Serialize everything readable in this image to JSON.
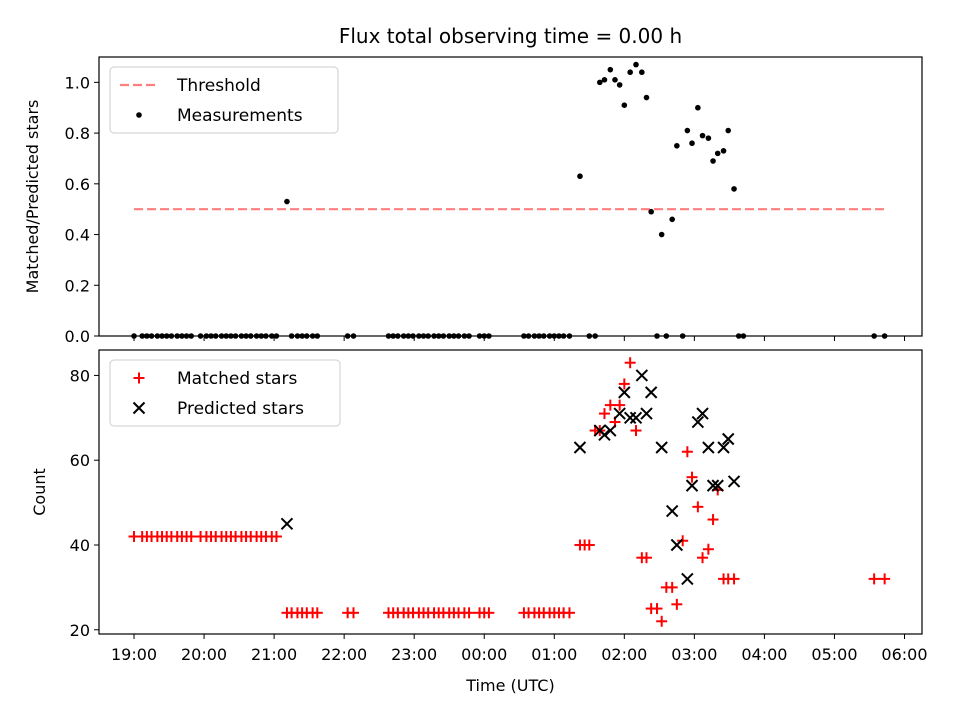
{
  "chart_data": [
    {
      "type": "scatter",
      "title": "Flux total observing time = 0.00 h",
      "xlabel": "",
      "ylabel": "Matched/Predicted stars",
      "xlim": [
        "18:30",
        "06:15"
      ],
      "ylim": [
        0,
        1.1
      ],
      "yticks": [
        0.0,
        0.2,
        0.4,
        0.6,
        0.8,
        1.0
      ],
      "ytick_labels": [
        "0.0",
        "0.2",
        "0.4",
        "0.6",
        "0.8",
        "1.0"
      ],
      "legend": {
        "placement": "upper-left",
        "entries": [
          "Threshold",
          "Measurements"
        ]
      },
      "threshold": {
        "name": "Threshold",
        "value": 0.5,
        "x_start": "19:00",
        "x_end": "05:43",
        "color": "#ff7f7f",
        "style": "dashed"
      },
      "series": [
        {
          "name": "Measurements",
          "marker": "dot",
          "color": "#000000",
          "points": [
            [
              "19:00",
              0
            ],
            [
              "19:07",
              0
            ],
            [
              "19:11",
              0
            ],
            [
              "19:15",
              0
            ],
            [
              "19:20",
              0
            ],
            [
              "19:24",
              0
            ],
            [
              "19:28",
              0
            ],
            [
              "19:32",
              0
            ],
            [
              "19:37",
              0
            ],
            [
              "19:41",
              0
            ],
            [
              "19:45",
              0
            ],
            [
              "19:49",
              0
            ],
            [
              "19:57",
              0
            ],
            [
              "20:02",
              0
            ],
            [
              "20:06",
              0
            ],
            [
              "20:10",
              0
            ],
            [
              "20:15",
              0
            ],
            [
              "20:19",
              0
            ],
            [
              "20:23",
              0
            ],
            [
              "20:27",
              0
            ],
            [
              "20:32",
              0
            ],
            [
              "20:36",
              0
            ],
            [
              "20:40",
              0
            ],
            [
              "20:45",
              0
            ],
            [
              "20:49",
              0
            ],
            [
              "20:53",
              0
            ],
            [
              "20:58",
              0
            ],
            [
              "21:02",
              0
            ],
            [
              "21:11",
              0.53
            ],
            [
              "21:15",
              0
            ],
            [
              "21:20",
              0
            ],
            [
              "21:24",
              0
            ],
            [
              "21:28",
              0
            ],
            [
              "21:33",
              0
            ],
            [
              "21:37",
              0
            ],
            [
              "22:03",
              0
            ],
            [
              "22:08",
              0
            ],
            [
              "22:38",
              0
            ],
            [
              "22:42",
              0
            ],
            [
              "22:46",
              0
            ],
            [
              "22:51",
              0
            ],
            [
              "22:55",
              0
            ],
            [
              "22:59",
              0
            ],
            [
              "23:04",
              0
            ],
            [
              "23:08",
              0
            ],
            [
              "23:12",
              0
            ],
            [
              "23:17",
              0
            ],
            [
              "23:21",
              0
            ],
            [
              "23:25",
              0
            ],
            [
              "23:30",
              0
            ],
            [
              "23:34",
              0
            ],
            [
              "23:38",
              0
            ],
            [
              "23:43",
              0
            ],
            [
              "23:47",
              0
            ],
            [
              "23:56",
              0
            ],
            [
              "00:00",
              0
            ],
            [
              "00:04",
              0
            ],
            [
              "00:34",
              0
            ],
            [
              "00:38",
              0
            ],
            [
              "00:43",
              0
            ],
            [
              "00:47",
              0
            ],
            [
              "00:51",
              0
            ],
            [
              "00:56",
              0
            ],
            [
              "01:00",
              0
            ],
            [
              "01:04",
              0
            ],
            [
              "01:08",
              0
            ],
            [
              "01:13",
              0
            ],
            [
              "01:22",
              0.63
            ],
            [
              "01:30",
              0
            ],
            [
              "01:35",
              0
            ],
            [
              "01:39",
              1.0
            ],
            [
              "01:43",
              1.01
            ],
            [
              "01:48",
              1.05
            ],
            [
              "01:52",
              1.01
            ],
            [
              "01:56",
              0.99
            ],
            [
              "02:00",
              0.91
            ],
            [
              "02:05",
              1.04
            ],
            [
              "02:10",
              1.07
            ],
            [
              "02:15",
              1.04
            ],
            [
              "02:19",
              0.94
            ],
            [
              "02:23",
              0.49
            ],
            [
              "02:28",
              0
            ],
            [
              "02:32",
              0.4
            ],
            [
              "02:36",
              0
            ],
            [
              "02:41",
              0.46
            ],
            [
              "02:45",
              0.75
            ],
            [
              "02:50",
              0
            ],
            [
              "02:54",
              0.81
            ],
            [
              "02:58",
              0.76
            ],
            [
              "03:03",
              0.9
            ],
            [
              "03:07",
              0.79
            ],
            [
              "03:12",
              0.78
            ],
            [
              "03:16",
              0.69
            ],
            [
              "03:20",
              0.72
            ],
            [
              "03:25",
              0.73
            ],
            [
              "03:29",
              0.81
            ],
            [
              "03:34",
              0.58
            ],
            [
              "03:38",
              0
            ],
            [
              "03:42",
              0
            ],
            [
              "05:34",
              0
            ],
            [
              "05:43",
              0
            ]
          ]
        }
      ]
    },
    {
      "type": "scatter",
      "title": "",
      "xlabel": "Time (UTC)",
      "ylabel": "Count",
      "xlim": [
        "18:30",
        "06:15"
      ],
      "ylim": [
        19,
        86
      ],
      "yticks": [
        20,
        40,
        60,
        80
      ],
      "ytick_labels": [
        "20",
        "40",
        "60",
        "80"
      ],
      "xticks": [
        "19:00",
        "20:00",
        "21:00",
        "22:00",
        "23:00",
        "00:00",
        "01:00",
        "02:00",
        "03:00",
        "04:00",
        "05:00",
        "06:00"
      ],
      "legend": {
        "placement": "upper-left",
        "entries": [
          "Matched stars",
          "Predicted stars"
        ]
      },
      "series": [
        {
          "name": "Matched stars",
          "marker": "plus",
          "color": "#ff0000",
          "points": [
            [
              "19:00",
              42
            ],
            [
              "19:07",
              42
            ],
            [
              "19:11",
              42
            ],
            [
              "19:15",
              42
            ],
            [
              "19:20",
              42
            ],
            [
              "19:24",
              42
            ],
            [
              "19:28",
              42
            ],
            [
              "19:32",
              42
            ],
            [
              "19:37",
              42
            ],
            [
              "19:41",
              42
            ],
            [
              "19:45",
              42
            ],
            [
              "19:49",
              42
            ],
            [
              "19:57",
              42
            ],
            [
              "20:02",
              42
            ],
            [
              "20:06",
              42
            ],
            [
              "20:10",
              42
            ],
            [
              "20:15",
              42
            ],
            [
              "20:19",
              42
            ],
            [
              "20:23",
              42
            ],
            [
              "20:27",
              42
            ],
            [
              "20:32",
              42
            ],
            [
              "20:36",
              42
            ],
            [
              "20:40",
              42
            ],
            [
              "20:45",
              42
            ],
            [
              "20:49",
              42
            ],
            [
              "20:53",
              42
            ],
            [
              "20:58",
              42
            ],
            [
              "21:02",
              42
            ],
            [
              "21:11",
              24
            ],
            [
              "21:15",
              24
            ],
            [
              "21:20",
              24
            ],
            [
              "21:24",
              24
            ],
            [
              "21:28",
              24
            ],
            [
              "21:33",
              24
            ],
            [
              "21:37",
              24
            ],
            [
              "22:03",
              24
            ],
            [
              "22:08",
              24
            ],
            [
              "22:38",
              24
            ],
            [
              "22:42",
              24
            ],
            [
              "22:46",
              24
            ],
            [
              "22:51",
              24
            ],
            [
              "22:55",
              24
            ],
            [
              "22:59",
              24
            ],
            [
              "23:04",
              24
            ],
            [
              "23:08",
              24
            ],
            [
              "23:12",
              24
            ],
            [
              "23:17",
              24
            ],
            [
              "23:21",
              24
            ],
            [
              "23:25",
              24
            ],
            [
              "23:30",
              24
            ],
            [
              "23:34",
              24
            ],
            [
              "23:38",
              24
            ],
            [
              "23:43",
              24
            ],
            [
              "23:47",
              24
            ],
            [
              "23:56",
              24
            ],
            [
              "00:00",
              24
            ],
            [
              "00:04",
              24
            ],
            [
              "00:34",
              24
            ],
            [
              "00:38",
              24
            ],
            [
              "00:43",
              24
            ],
            [
              "00:47",
              24
            ],
            [
              "00:51",
              24
            ],
            [
              "00:56",
              24
            ],
            [
              "01:00",
              24
            ],
            [
              "01:04",
              24
            ],
            [
              "01:08",
              24
            ],
            [
              "01:13",
              24
            ],
            [
              "01:22",
              40
            ],
            [
              "01:26",
              40
            ],
            [
              "01:30",
              40
            ],
            [
              "01:35",
              67
            ],
            [
              "01:39",
              67
            ],
            [
              "01:43",
              71
            ],
            [
              "01:48",
              73
            ],
            [
              "01:52",
              69
            ],
            [
              "01:56",
              73
            ],
            [
              "02:00",
              78
            ],
            [
              "02:05",
              83
            ],
            [
              "02:10",
              67
            ],
            [
              "02:15",
              37
            ],
            [
              "02:19",
              37
            ],
            [
              "02:23",
              25
            ],
            [
              "02:28",
              25
            ],
            [
              "02:32",
              22
            ],
            [
              "02:36",
              30
            ],
            [
              "02:41",
              30
            ],
            [
              "02:45",
              26
            ],
            [
              "02:50",
              41
            ],
            [
              "02:54",
              62
            ],
            [
              "02:58",
              56
            ],
            [
              "03:03",
              49
            ],
            [
              "03:07",
              37
            ],
            [
              "03:12",
              39
            ],
            [
              "03:16",
              46
            ],
            [
              "03:20",
              53
            ],
            [
              "03:25",
              32
            ],
            [
              "03:29",
              32
            ],
            [
              "03:34",
              32
            ],
            [
              "05:34",
              32
            ],
            [
              "05:43",
              32
            ]
          ]
        },
        {
          "name": "Predicted stars",
          "marker": "x",
          "color": "#000000",
          "points": [
            [
              "21:11",
              45
            ],
            [
              "01:22",
              63
            ],
            [
              "01:39",
              67
            ],
            [
              "01:43",
              66
            ],
            [
              "01:48",
              67
            ],
            [
              "01:56",
              71
            ],
            [
              "02:00",
              76
            ],
            [
              "02:05",
              70
            ],
            [
              "02:10",
              70
            ],
            [
              "02:15",
              80
            ],
            [
              "02:19",
              71
            ],
            [
              "02:23",
              76
            ],
            [
              "02:32",
              63
            ],
            [
              "02:41",
              48
            ],
            [
              "02:45",
              40
            ],
            [
              "02:54",
              32
            ],
            [
              "02:58",
              54
            ],
            [
              "03:03",
              69
            ],
            [
              "03:07",
              71
            ],
            [
              "03:12",
              63
            ],
            [
              "03:16",
              54
            ],
            [
              "03:20",
              54
            ],
            [
              "03:25",
              63
            ],
            [
              "03:29",
              65
            ],
            [
              "03:34",
              55
            ]
          ]
        }
      ]
    }
  ]
}
